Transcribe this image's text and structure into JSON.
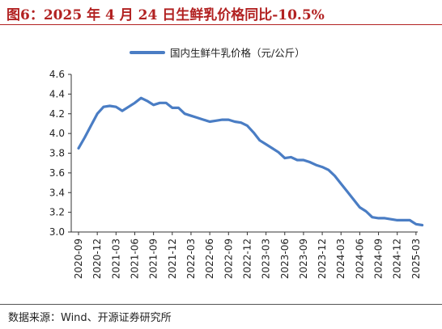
{
  "title": "图6：2025 年 4 月 24 日生鲜乳价格同比-10.5%",
  "source": "数据来源：Wind、开源证券研究所",
  "colors": {
    "line": "#4a7dc4",
    "title": "#b22222",
    "axis": "#333333"
  },
  "chart_data": {
    "type": "line",
    "title": "",
    "xlabel": "",
    "ylabel": "",
    "ylim": [
      3.0,
      4.6
    ],
    "yticks": [
      "3.0",
      "3.2",
      "3.4",
      "3.6",
      "3.8",
      "4.0",
      "4.2",
      "4.4",
      "4.6"
    ],
    "xticks": [
      "2020-09",
      "2020-12",
      "2021-03",
      "2021-06",
      "2021-09",
      "2021-12",
      "2022-03",
      "2022-06",
      "2022-09",
      "2022-12",
      "2023-03",
      "2023-06",
      "2023-09",
      "2023-12",
      "2024-03",
      "2024-06",
      "2024-09",
      "2024-12",
      "2025-03"
    ],
    "grid": false,
    "legend_position": "top-center",
    "series": [
      {
        "name": "国内生鲜牛乳价格（元/公斤）",
        "x": [
          "2020-09",
          "2020-10",
          "2020-11",
          "2020-12",
          "2021-01",
          "2021-02",
          "2021-03",
          "2021-04",
          "2021-05",
          "2021-06",
          "2021-07",
          "2021-08",
          "2021-09",
          "2021-10",
          "2021-11",
          "2021-12",
          "2022-01",
          "2022-02",
          "2022-03",
          "2022-04",
          "2022-05",
          "2022-06",
          "2022-07",
          "2022-08",
          "2022-09",
          "2022-10",
          "2022-11",
          "2022-12",
          "2023-01",
          "2023-02",
          "2023-03",
          "2023-04",
          "2023-05",
          "2023-06",
          "2023-07",
          "2023-08",
          "2023-09",
          "2023-10",
          "2023-11",
          "2023-12",
          "2024-01",
          "2024-02",
          "2024-03",
          "2024-04",
          "2024-05",
          "2024-06",
          "2024-07",
          "2024-08",
          "2024-09",
          "2024-10",
          "2024-11",
          "2024-12",
          "2025-01",
          "2025-02",
          "2025-03",
          "2025-04"
        ],
        "values": [
          3.85,
          3.96,
          4.08,
          4.2,
          4.27,
          4.28,
          4.27,
          4.23,
          4.27,
          4.31,
          4.36,
          4.33,
          4.29,
          4.31,
          4.31,
          4.26,
          4.26,
          4.2,
          4.18,
          4.16,
          4.14,
          4.12,
          4.13,
          4.14,
          4.14,
          4.12,
          4.11,
          4.08,
          4.01,
          3.93,
          3.89,
          3.85,
          3.81,
          3.75,
          3.76,
          3.73,
          3.73,
          3.71,
          3.68,
          3.66,
          3.63,
          3.57,
          3.49,
          3.41,
          3.33,
          3.25,
          3.21,
          3.15,
          3.14,
          3.14,
          3.13,
          3.12,
          3.12,
          3.12,
          3.08,
          3.07
        ]
      }
    ]
  }
}
